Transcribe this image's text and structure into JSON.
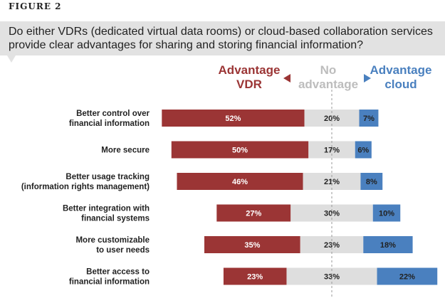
{
  "figure_label": "FIGURE 2",
  "question": "Do either VDRs (dedicated virtual data rooms) or cloud-based collaboration services provide clear advantages for sharing and storing financial information?",
  "colors": {
    "vdr": "#9b3535",
    "none": "#dedede",
    "cloud": "#4a80bf",
    "none_text": "#bdbdbd"
  },
  "chart_data": {
    "type": "bar",
    "orientation": "horizontal",
    "stacked": "diverging",
    "categories": [
      [
        "Better control over",
        "financial information"
      ],
      [
        "More secure"
      ],
      [
        "Better usage tracking",
        "(information rights management)"
      ],
      [
        "Better integration with",
        "financial systems"
      ],
      [
        "More customizable",
        "to user needs"
      ],
      [
        "Better access to",
        "financial information"
      ]
    ],
    "legend": [
      [
        "Advantage",
        "VDR"
      ],
      [
        "No",
        "advantage"
      ],
      [
        "Advantage",
        "cloud"
      ]
    ],
    "series": [
      {
        "name": "Advantage VDR",
        "values": [
          52,
          50,
          46,
          27,
          35,
          23
        ]
      },
      {
        "name": "No advantage",
        "values": [
          20,
          17,
          21,
          30,
          23,
          33
        ]
      },
      {
        "name": "Advantage cloud",
        "values": [
          7,
          6,
          8,
          10,
          18,
          22
        ]
      }
    ],
    "unit": "%"
  }
}
